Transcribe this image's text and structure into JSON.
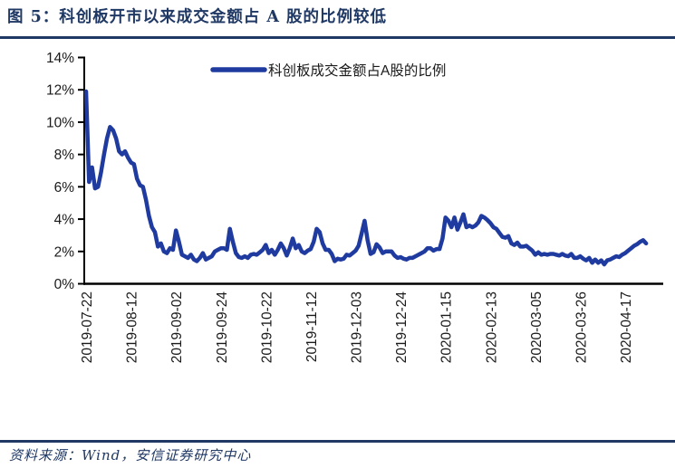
{
  "header": {
    "title": "图 5：科创板开市以来成交金额占 A 股的比例较低"
  },
  "footer": {
    "source_label": "资料来源：Wind，安信证券研究中心"
  },
  "colors": {
    "navy_accent": "#1f3864",
    "series_blue": "#1f3ba0",
    "axis_black": "#000000",
    "label_black": "#1a1a1a",
    "background": "#ffffff"
  },
  "chart_data": {
    "type": "line",
    "title": "",
    "xlabel": "",
    "ylabel": "",
    "unit": "%",
    "grid": false,
    "legend_position": "top-center",
    "ylim": [
      0,
      14
    ],
    "y_tick_values": [
      0,
      2,
      4,
      6,
      8,
      10,
      12,
      14
    ],
    "y_tick_labels": [
      "0%",
      "2%",
      "4%",
      "6%",
      "8%",
      "10%",
      "12%",
      "14%"
    ],
    "x_tick_labels": [
      "2019-07-22",
      "2019-08-12",
      "2019-09-02",
      "2019-09-24",
      "2019-10-22",
      "2019-11-12",
      "2019-12-03",
      "2019-12-24",
      "2020-01-15",
      "2020-02-13",
      "2020-03-05",
      "2020-03-26",
      "2020-04-17"
    ],
    "x_tick_day_indices": [
      0,
      15,
      30,
      45,
      60,
      75,
      90,
      105,
      120,
      135,
      150,
      165,
      180
    ],
    "x_unit": "trading-day index since 2019-07-22",
    "series": [
      {
        "name": "科创板成交金额占A股的比例",
        "unit": "%",
        "values": [
          11.9,
          6.3,
          7.2,
          5.9,
          6.0,
          6.9,
          8.0,
          9.0,
          9.7,
          9.5,
          9.0,
          8.2,
          8.0,
          8.2,
          7.8,
          7.5,
          7.4,
          6.5,
          6.1,
          6.0,
          5.2,
          4.2,
          3.5,
          3.2,
          2.3,
          2.5,
          2.0,
          1.9,
          2.2,
          2.1,
          3.3,
          2.6,
          1.8,
          1.7,
          1.6,
          1.8,
          1.5,
          1.4,
          1.6,
          1.9,
          1.5,
          1.6,
          1.7,
          2.0,
          2.1,
          2.2,
          2.2,
          2.1,
          3.4,
          2.6,
          1.9,
          1.65,
          1.6,
          1.7,
          1.6,
          1.8,
          1.85,
          1.8,
          1.95,
          2.1,
          2.4,
          1.9,
          2.1,
          1.8,
          2.1,
          2.5,
          2.2,
          1.75,
          2.2,
          2.8,
          2.2,
          2.4,
          2.0,
          1.9,
          2.05,
          2.15,
          2.6,
          3.4,
          3.2,
          2.5,
          2.1,
          2.1,
          1.85,
          1.4,
          1.55,
          1.5,
          1.55,
          1.8,
          1.75,
          1.9,
          2.05,
          2.35,
          3.1,
          3.9,
          2.7,
          1.85,
          1.95,
          2.45,
          2.25,
          1.9,
          2.0,
          2.0,
          2.0,
          1.75,
          1.6,
          1.65,
          1.55,
          1.5,
          1.6,
          1.6,
          1.7,
          1.8,
          1.9,
          2.0,
          2.2,
          2.2,
          2.05,
          2.15,
          2.15,
          2.8,
          4.1,
          3.9,
          3.5,
          4.1,
          3.35,
          3.8,
          4.3,
          3.5,
          3.6,
          3.5,
          3.6,
          3.8,
          4.2,
          4.1,
          3.95,
          3.75,
          3.5,
          3.4,
          3.15,
          2.9,
          2.85,
          2.95,
          2.5,
          2.4,
          2.55,
          2.3,
          2.3,
          2.35,
          2.2,
          2.05,
          1.8,
          1.95,
          1.8,
          1.85,
          1.8,
          1.85,
          1.85,
          1.8,
          1.75,
          1.85,
          1.75,
          1.7,
          1.85,
          1.6,
          1.6,
          1.7,
          1.55,
          1.45,
          1.6,
          1.3,
          1.5,
          1.3,
          1.45,
          1.2,
          1.45,
          1.5,
          1.6,
          1.7,
          1.65,
          1.8,
          1.9,
          2.05,
          2.2,
          2.35,
          2.45,
          2.6,
          2.7,
          2.5
        ]
      }
    ]
  }
}
